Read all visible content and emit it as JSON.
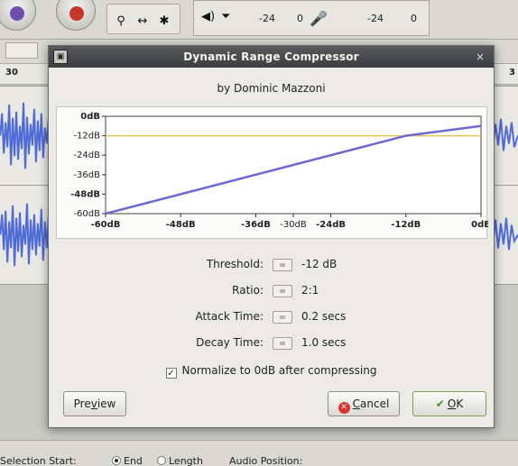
{
  "dialog": {
    "title": "Dynamic Range Compressor",
    "byline": "by Dominic Mazzoni",
    "close_glyph": "×",
    "params": [
      {
        "label": "Threshold:",
        "value": "-12 dB"
      },
      {
        "label": "Ratio:",
        "value": "2:1"
      },
      {
        "label": "Attack Time:",
        "value": "0.2 secs"
      },
      {
        "label": "Decay Time:",
        "value": "1.0 secs"
      }
    ],
    "normalize_label": "Normalize to 0dB after compressing",
    "normalize_checked": true,
    "buttons": {
      "preview": {
        "pre": "Pre",
        "mnemonic": "v",
        "post": "iew"
      },
      "cancel": {
        "mnemonic": "C",
        "post": "ancel"
      },
      "ok": {
        "mnemonic": "O",
        "post": "K"
      }
    }
  },
  "chart_data": {
    "type": "line",
    "x_tick_labels": [
      "-60dB",
      "-48dB",
      "-36dB",
      "-30dB",
      "-24dB",
      "-12dB",
      "0dB"
    ],
    "x_tick_values": [
      -60,
      -48,
      -36,
      -30,
      -24,
      -12,
      0
    ],
    "y_tick_labels": [
      "0dB",
      "-12dB",
      "-24dB",
      "-36dB",
      "-48dB",
      "-60dB"
    ],
    "y_tick_values": [
      0,
      -12,
      -24,
      -36,
      -48,
      -60
    ],
    "xlim": [
      -60,
      0
    ],
    "ylim": [
      -60,
      0
    ],
    "threshold_level": -12,
    "threshold_color": "#e8c45a",
    "curve_color": "#6a6ad2",
    "series": [
      {
        "x": [
          -60,
          -12,
          0
        ],
        "values": [
          -60,
          -12,
          -6
        ]
      }
    ]
  },
  "background": {
    "meter_labels": [
      "-24",
      "0",
      "-24",
      "0"
    ],
    "ruler_labels": [
      "30",
      "3"
    ],
    "status": {
      "selection_start": "Selection Start:",
      "end": "End",
      "length": "Length",
      "audio_position": "Audio Position:"
    },
    "colors": {
      "wave": "#4f6bd8"
    }
  }
}
